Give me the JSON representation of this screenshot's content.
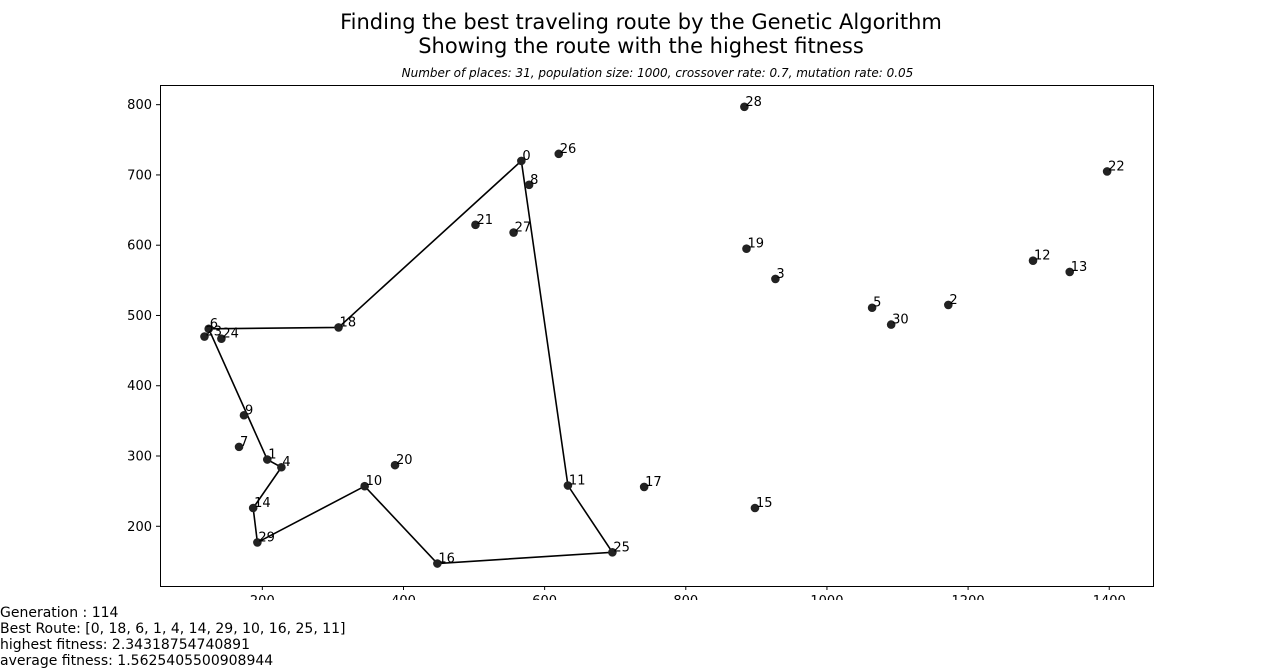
{
  "title_line1": "Finding the best traveling route by the Genetic Algorithm",
  "title_line2": "Showing the route with the highest fitness",
  "subtitle": "Number of places: 31, population size: 1000, crossover rate: 0.7, mutation rate: 0.05",
  "info": {
    "generation": "Generation : 114",
    "best_route": "Best Route: [0, 18, 6, 1, 4, 14, 29, 10, 16, 25, 11]",
    "highest_fitness": "highest fitness: 2.34318754740891",
    "average_fitness": "average fitness: 1.5625405500908944"
  },
  "colors": {
    "point": "#222222",
    "line": "#000000"
  },
  "chart_data": {
    "type": "scatter",
    "title": "Finding the best traveling route by the Genetic Algorithm\nShowing the route with the highest fitness",
    "xlabel": "",
    "ylabel": "",
    "xlim": [
      55,
      1462
    ],
    "ylim": [
      115,
      828
    ],
    "xticks": [
      200,
      400,
      600,
      800,
      1000,
      1200,
      1400
    ],
    "yticks": [
      200,
      300,
      400,
      500,
      600,
      700,
      800
    ],
    "grid": false,
    "points": [
      {
        "label": "0",
        "x": 567,
        "y": 720
      },
      {
        "label": "1",
        "x": 207,
        "y": 295
      },
      {
        "label": "2",
        "x": 1172,
        "y": 515
      },
      {
        "label": "3",
        "x": 927,
        "y": 552
      },
      {
        "label": "4",
        "x": 227,
        "y": 284
      },
      {
        "label": "5",
        "x": 1064,
        "y": 511
      },
      {
        "label": "6",
        "x": 124,
        "y": 481
      },
      {
        "label": "7",
        "x": 167,
        "y": 313
      },
      {
        "label": "8",
        "x": 578,
        "y": 686
      },
      {
        "label": "9",
        "x": 174,
        "y": 358
      },
      {
        "label": "10",
        "x": 345,
        "y": 257
      },
      {
        "label": "11",
        "x": 633,
        "y": 258
      },
      {
        "label": "12",
        "x": 1292,
        "y": 578
      },
      {
        "label": "13",
        "x": 1344,
        "y": 562
      },
      {
        "label": "14",
        "x": 187,
        "y": 226
      },
      {
        "label": "15",
        "x": 898,
        "y": 226
      },
      {
        "label": "16",
        "x": 448,
        "y": 147
      },
      {
        "label": "17",
        "x": 741,
        "y": 256
      },
      {
        "label": "18",
        "x": 308,
        "y": 483
      },
      {
        "label": "19",
        "x": 886,
        "y": 595
      },
      {
        "label": "20",
        "x": 388,
        "y": 287
      },
      {
        "label": "21",
        "x": 502,
        "y": 629
      },
      {
        "label": "22",
        "x": 1397,
        "y": 705
      },
      {
        "label": "23",
        "x": 118,
        "y": 470
      },
      {
        "label": "24",
        "x": 142,
        "y": 467
      },
      {
        "label": "25",
        "x": 696,
        "y": 163
      },
      {
        "label": "26",
        "x": 620,
        "y": 730
      },
      {
        "label": "27",
        "x": 556,
        "y": 618
      },
      {
        "label": "28",
        "x": 883,
        "y": 797
      },
      {
        "label": "29",
        "x": 193,
        "y": 177
      },
      {
        "label": "30",
        "x": 1091,
        "y": 487
      }
    ],
    "route": [
      0,
      18,
      6,
      1,
      4,
      14,
      29,
      10,
      16,
      25,
      11,
      0
    ]
  }
}
